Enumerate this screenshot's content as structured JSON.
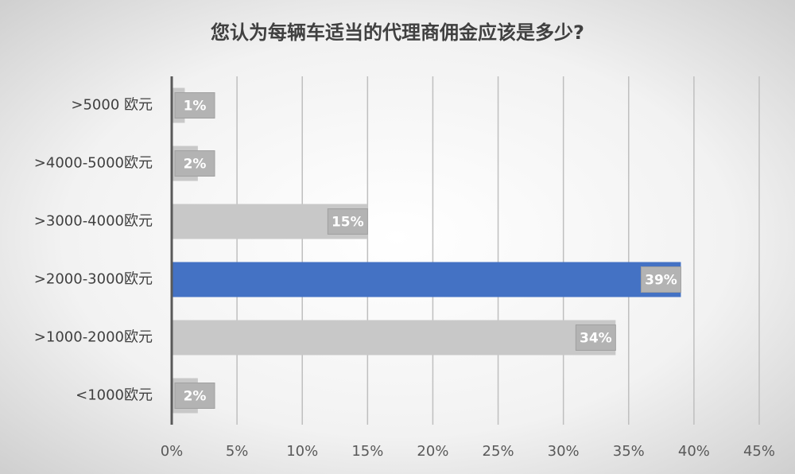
{
  "chart_data": {
    "type": "hbar",
    "title": "您认为每辆车适当的代理商佣金应该是多少?",
    "categories": [
      ">5000 欧元",
      ">4000-5000欧元",
      ">3000-4000欧元",
      ">2000-3000欧元",
      ">1000-2000欧元",
      "<1000欧元"
    ],
    "values": [
      1,
      2,
      15,
      39,
      34,
      2
    ],
    "value_labels": [
      "1%",
      "2%",
      "15%",
      "39%",
      "34%",
      "2%"
    ],
    "colors": [
      "#c8c8c8",
      "#c8c8c8",
      "#c8c8c8",
      "#4472c4",
      "#c8c8c8",
      "#c8c8c8"
    ],
    "xlim": [
      0,
      45
    ],
    "xticks": [
      {
        "value": 0,
        "label": "0%"
      },
      {
        "value": 5,
        "label": "5%"
      },
      {
        "value": 10,
        "label": "10%"
      },
      {
        "value": 15,
        "label": "15%"
      },
      {
        "value": 20,
        "label": "20%"
      },
      {
        "value": 25,
        "label": "25%"
      },
      {
        "value": 30,
        "label": "30%"
      },
      {
        "value": 35,
        "label": "35%"
      },
      {
        "value": 40,
        "label": "40%"
      },
      {
        "value": 45,
        "label": "45%"
      }
    ],
    "grid": true
  }
}
